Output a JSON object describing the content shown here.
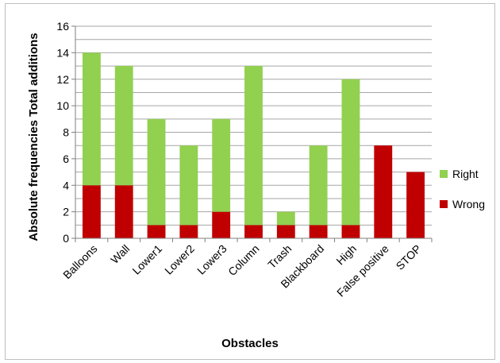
{
  "chart_data": {
    "type": "bar",
    "stacked": true,
    "title": "",
    "xlabel": "Obstacles",
    "ylabel": "Absolute frequencies Total additions",
    "ylim": [
      0,
      16
    ],
    "yticks": [
      0,
      2,
      4,
      6,
      8,
      10,
      12,
      14,
      16
    ],
    "grid": true,
    "legend_position": "right",
    "categories": [
      "Balloons",
      "Wall",
      "Lower1",
      "Lower2",
      "Lower3",
      "Column",
      "Trash",
      "Blackboard",
      "High",
      "False positive",
      "STOP"
    ],
    "series": [
      {
        "name": "Wrong",
        "color": "#c00000",
        "values": [
          4,
          4,
          1,
          1,
          2,
          1,
          1,
          1,
          1,
          7,
          5
        ]
      },
      {
        "name": "Right",
        "color": "#92d050",
        "values": [
          10,
          9,
          8,
          6,
          7,
          12,
          1,
          6,
          11,
          0,
          0
        ]
      }
    ],
    "legend_order": [
      "Right",
      "Wrong"
    ]
  }
}
